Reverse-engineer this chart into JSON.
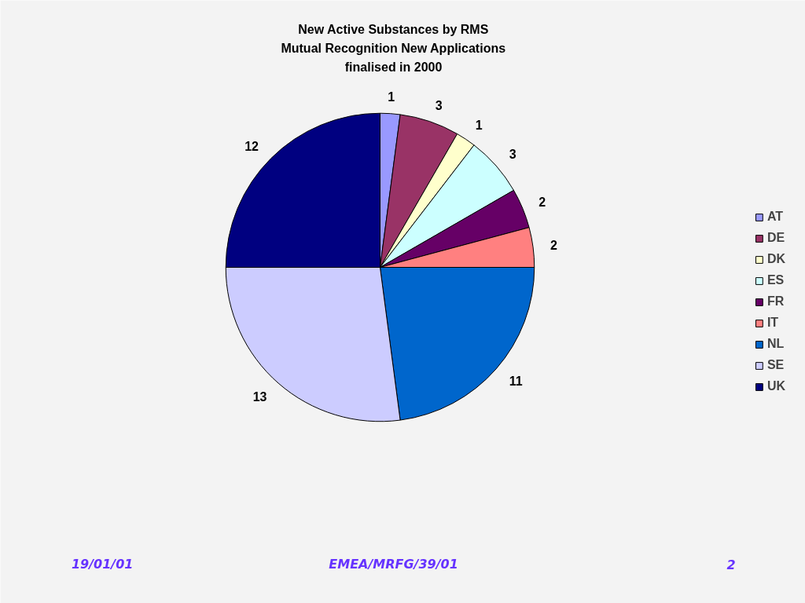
{
  "chart_data": {
    "type": "pie",
    "title": "New Active Substances by RMS\nMutual Recognition New Applications\nfinalised in 2000",
    "categories": [
      "AT",
      "DE",
      "DK",
      "ES",
      "FR",
      "IT",
      "NL",
      "SE",
      "UK"
    ],
    "values": [
      1,
      3,
      1,
      3,
      2,
      2,
      11,
      13,
      12
    ],
    "colors": [
      "#9999ff",
      "#993366",
      "#ffffcc",
      "#ccffff",
      "#660066",
      "#ff8080",
      "#0066cc",
      "#ccccff",
      "#000080"
    ],
    "data_labels": true,
    "legend": "right",
    "annotations": [
      "19/01/01",
      "EMEA/MRFG/39/01",
      "2"
    ]
  }
}
